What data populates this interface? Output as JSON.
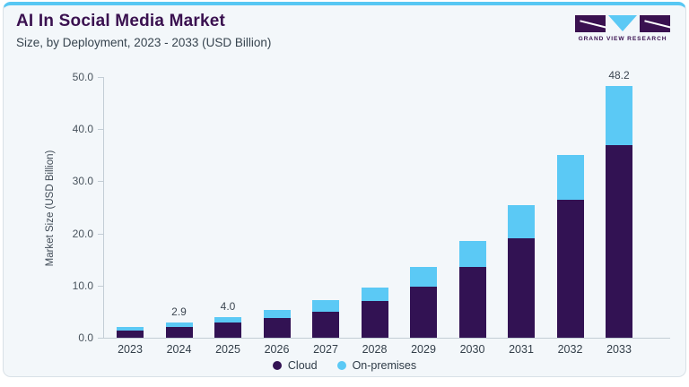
{
  "header": {
    "title": "AI In Social Media Market",
    "subtitle": "Size, by Deployment, 2023 - 2033 (USD Billion)"
  },
  "logo": {
    "caption": "GRAND VIEW RESEARCH"
  },
  "colors": {
    "accent_top_border": "#57c7f3",
    "card_background": "#f3f7fa",
    "title_purple": "#3a1150",
    "cloud_purple": "#321253",
    "on_premises_blue": "#5bc9f5",
    "axis_gray": "#c3cdd5"
  },
  "chart_data": {
    "type": "bar",
    "stacked": true,
    "title": "AI In Social Media Market",
    "subtitle": "Size, by Deployment, 2023 - 2033 (USD Billion)",
    "xlabel": "",
    "ylabel": "Market Size (USD Billion)",
    "ylim": [
      0,
      50
    ],
    "yticks": [
      0,
      10,
      20,
      30,
      40,
      50
    ],
    "ytick_labels": [
      "0.0",
      "10.0",
      "20.0",
      "30.0",
      "40.0",
      "50.0"
    ],
    "grid": false,
    "legend_position": "bottom",
    "categories": [
      "2023",
      "2024",
      "2025",
      "2026",
      "2027",
      "2028",
      "2029",
      "2030",
      "2031",
      "2032",
      "2033"
    ],
    "series": [
      {
        "name": "Cloud",
        "color": "#321253",
        "values": [
          1.4,
          2.0,
          2.9,
          3.7,
          5.0,
          7.0,
          9.8,
          13.6,
          19.0,
          26.5,
          37.0
        ]
      },
      {
        "name": "On-premises",
        "color": "#5bc9f5",
        "values": [
          0.7,
          0.9,
          1.1,
          1.6,
          2.2,
          2.7,
          3.7,
          4.9,
          6.5,
          8.5,
          11.2
        ]
      }
    ],
    "totals": [
      2.1,
      2.9,
      4.0,
      5.3,
      7.2,
      9.7,
      13.5,
      18.5,
      25.5,
      35.0,
      48.2
    ],
    "bar_labels": [
      "",
      "2.9",
      "4.0",
      "",
      "",
      "",
      "",
      "",
      "",
      "",
      "48.2"
    ]
  }
}
